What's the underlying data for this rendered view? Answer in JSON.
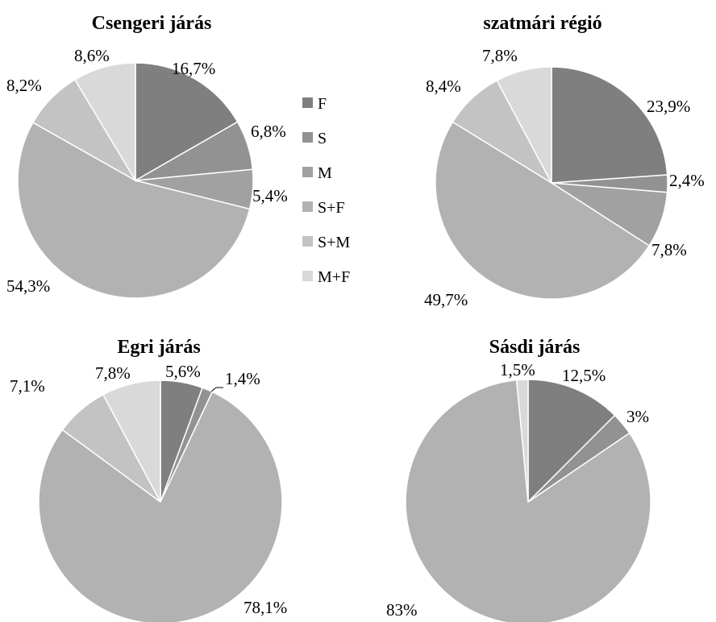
{
  "legend": {
    "items": [
      {
        "label": "F",
        "color": "#7f7f7f"
      },
      {
        "label": "S",
        "color": "#929292"
      },
      {
        "label": "M",
        "color": "#a1a1a1"
      },
      {
        "label": "S+F",
        "color": "#b2b2b2"
      },
      {
        "label": "S+M",
        "color": "#c3c3c3"
      },
      {
        "label": "M+F",
        "color": "#d9d9d9"
      }
    ]
  },
  "chart_data": [
    {
      "type": "pie",
      "title": "Csengeri járás",
      "categories": [
        "F",
        "S",
        "M",
        "S+F",
        "S+M",
        "M+F"
      ],
      "values": [
        16.7,
        6.8,
        5.4,
        54.3,
        8.2,
        8.6
      ],
      "labels": [
        "16,7%",
        "6,8%",
        "5,4%",
        "54,3%",
        "8,2%",
        "8,6%"
      ]
    },
    {
      "type": "pie",
      "title": "szatmári régió",
      "categories": [
        "F",
        "S",
        "M",
        "S+F",
        "S+M",
        "M+F"
      ],
      "values": [
        23.9,
        2.4,
        7.8,
        49.7,
        8.4,
        7.8
      ],
      "labels": [
        "23,9%",
        "2,4%",
        "7,8%",
        "49,7%",
        "8,4%",
        "7,8%"
      ]
    },
    {
      "type": "pie",
      "title": "Egri járás",
      "categories": [
        "F",
        "S",
        "M",
        "S+F",
        "S+M",
        "M+F"
      ],
      "values": [
        5.6,
        1.4,
        0,
        78.1,
        7.1,
        7.8
      ],
      "labels": [
        "5,6%",
        "1,4%",
        "",
        "78,1%",
        "7,1%",
        "7,8%"
      ]
    },
    {
      "type": "pie",
      "title": "Sásdi járás",
      "categories": [
        "F",
        "S",
        "M",
        "S+F",
        "S+M",
        "M+F"
      ],
      "values": [
        12.5,
        3,
        0,
        83,
        0,
        1.5
      ],
      "labels": [
        "12,5%",
        "3%",
        "",
        "83%",
        "",
        "1,5%"
      ]
    }
  ]
}
